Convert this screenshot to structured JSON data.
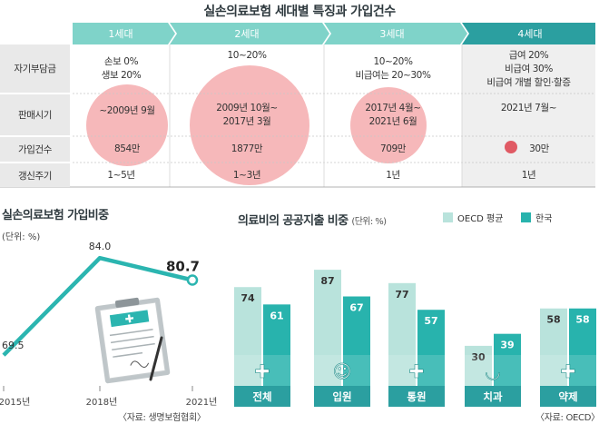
{
  "title": "실손의료보험 세대별 특징과 가입건수",
  "table": {
    "generations": [
      "1세대",
      "2세대",
      "3세대",
      "4세대"
    ],
    "row_labels": [
      "자기부담금",
      "판매시기",
      "가입건수",
      "갱신주기"
    ],
    "deductible": {
      "g1": [
        "손보 0%",
        "생보 20%"
      ],
      "g2": [
        "10~20%"
      ],
      "g3": [
        "10~20%",
        "비급여는 20~30%"
      ],
      "g4": [
        "급여 20%",
        "비급여 30%",
        "비급여 개별 할인·할증"
      ]
    },
    "sales_period": {
      "g1": [
        "~2009년 9월"
      ],
      "g2": [
        "2009년 10월~",
        "2017년 3월"
      ],
      "g3": [
        "2017년 4월~",
        "2021년 6월"
      ],
      "g4": [
        "2021년 7월~"
      ]
    },
    "subscriptions": [
      "854만",
      "1877만",
      "709만",
      "30만"
    ],
    "subscription_values_10k": [
      854,
      1877,
      709,
      30
    ],
    "renewal": [
      "1~5년",
      "1~3년",
      "1년",
      "1년"
    ],
    "colors": {
      "header_light": "#7fd3c9",
      "header_dark": "#2b9fa0",
      "circle": "#f3a0a3",
      "dot": "#e05a64"
    }
  },
  "left_chart": {
    "title": "실손의료보험 가입비중",
    "unit": "(단위: %)",
    "source": "〈자료: 생명보험협회〉"
  },
  "right_chart": {
    "title": "의료비의 공공지출 비중",
    "unit": "(단위: %)",
    "source": "〈자료: OECD〉",
    "icons": [
      "shield-cross-icon",
      "nurse-icon",
      "clinic-icon",
      "tooth-icon",
      "medicine-bottle-icon"
    ]
  },
  "chart_data": [
    {
      "type": "line",
      "title": "실손의료보험 가입비중",
      "x": [
        "2015년",
        "2018년",
        "2021년"
      ],
      "y": [
        69.5,
        84.0,
        80.7
      ],
      "ylabel": "(단위: %)",
      "ylim": [
        66,
        87
      ],
      "grid": false,
      "color": "#2bb5b0"
    },
    {
      "type": "bar",
      "title": "의료비의 공공지출 비중",
      "categories": [
        "전체",
        "입원",
        "통원",
        "치과",
        "약제"
      ],
      "series": [
        {
          "name": "OECD 평균",
          "values": [
            74,
            87,
            77,
            30,
            58
          ],
          "color": "#b9e3dc"
        },
        {
          "name": "한국",
          "values": [
            61,
            67,
            57,
            39,
            58
          ],
          "color": "#28b3ad"
        }
      ],
      "ylabel": "(단위: %)",
      "ylim": [
        0,
        100
      ],
      "legend": "top-right",
      "grid": false
    }
  ]
}
